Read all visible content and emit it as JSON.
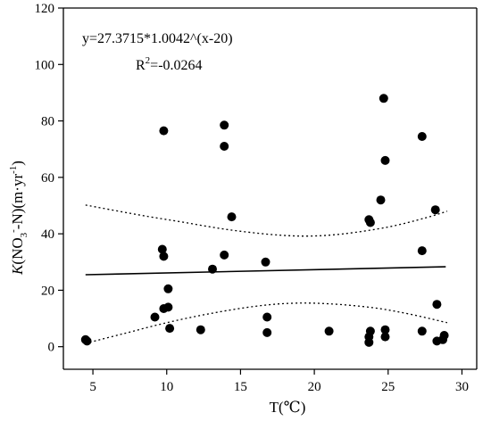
{
  "chart_data": {
    "type": "scatter",
    "xlabel": "T(℃)",
    "ylabel": {
      "k": "K",
      "paren_open": "(NO",
      "sub3": "3",
      "sup_minus": "-",
      "dash_n": "-N)(m·yr",
      "sup_m1": "-1",
      "close": ")"
    },
    "xlim": [
      3,
      31
    ],
    "ylim": [
      -8,
      120
    ],
    "xticks": [
      5,
      10,
      15,
      20,
      25,
      30
    ],
    "yticks": [
      0,
      20,
      40,
      60,
      80,
      100,
      120
    ],
    "equation": {
      "line1": "y=27.3715*1.0042^(x-20)",
      "r_label": "R",
      "r_sup": "2",
      "r_value": "=-0.0264"
    },
    "grid": false,
    "legend": "none",
    "points": [
      [
        4.5,
        2.5
      ],
      [
        4.6,
        2.0
      ],
      [
        9.2,
        10.5
      ],
      [
        9.7,
        34.5
      ],
      [
        9.8,
        32.0
      ],
      [
        9.8,
        76.5
      ],
      [
        9.8,
        13.5
      ],
      [
        10.1,
        20.5
      ],
      [
        10.1,
        14.0
      ],
      [
        10.2,
        6.5
      ],
      [
        12.3,
        6.0
      ],
      [
        13.1,
        27.5
      ],
      [
        13.9,
        78.5
      ],
      [
        13.9,
        71.0
      ],
      [
        13.9,
        32.5
      ],
      [
        14.4,
        46.0
      ],
      [
        16.7,
        30.0
      ],
      [
        16.8,
        10.5
      ],
      [
        16.8,
        5.0
      ],
      [
        21.0,
        5.5
      ],
      [
        23.7,
        45.0
      ],
      [
        23.8,
        44.0
      ],
      [
        23.7,
        3.5
      ],
      [
        23.7,
        1.5
      ],
      [
        23.8,
        5.5
      ],
      [
        24.5,
        52.0
      ],
      [
        24.7,
        88.0
      ],
      [
        24.8,
        66.0
      ],
      [
        24.8,
        6.0
      ],
      [
        24.8,
        3.5
      ],
      [
        27.3,
        74.5
      ],
      [
        27.3,
        34.0
      ],
      [
        27.3,
        5.5
      ],
      [
        28.2,
        48.5
      ],
      [
        28.3,
        15.0
      ],
      [
        28.3,
        2.0
      ],
      [
        28.7,
        2.5
      ],
      [
        28.8,
        4.0
      ]
    ],
    "fit_line": [
      [
        4.5,
        25.5
      ],
      [
        28.9,
        28.3
      ]
    ],
    "upper_band": [
      [
        4.5,
        50.2
      ],
      [
        8,
        46.8
      ],
      [
        11,
        44.2
      ],
      [
        14,
        41.6
      ],
      [
        17,
        39.8
      ],
      [
        19.5,
        39.2
      ],
      [
        22,
        40.0
      ],
      [
        25,
        42.4
      ],
      [
        27.5,
        45.6
      ],
      [
        29.0,
        48.0
      ]
    ],
    "lower_band": [
      [
        4.5,
        1.2
      ],
      [
        7,
        4.5
      ],
      [
        10,
        8.5
      ],
      [
        13,
        11.8
      ],
      [
        16,
        14.3
      ],
      [
        18.5,
        15.4
      ],
      [
        21,
        15.2
      ],
      [
        24,
        13.8
      ],
      [
        26.5,
        11.5
      ],
      [
        29.0,
        8.5
      ]
    ]
  }
}
